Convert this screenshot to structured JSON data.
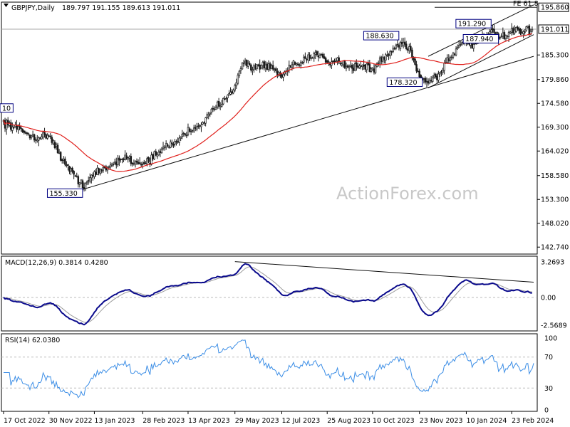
{
  "chart_data": {
    "type": "candlestick",
    "symbol": "GBPJPY,Daily",
    "ohlc_readout": "189.797 191.155 189.613 191.011",
    "watermark": "ActionForex.com",
    "colors": {
      "background": "#ffffff",
      "candles": "#1a1a1a",
      "moving_average": "#e0201c",
      "macd_line": "#0a0a8c",
      "signal_line": "#9c9c9c",
      "rsi_line": "#3c8ee6",
      "grid_dashed": "#bbbbbb",
      "label_border": "#000080"
    },
    "x_axis": {
      "ticks": [
        "17 Oct 2022",
        "30 Nov 2022",
        "13 Jan 2023",
        "28 Feb 2023",
        "13 Apr 2023",
        "29 May 2023",
        "12 Jul 2023",
        "25 Aug 2023",
        "10 Oct 2023",
        "23 Nov 2023",
        "10 Jan 2024",
        "23 Feb 2024"
      ],
      "tick_index": [
        0,
        31,
        62,
        95,
        126,
        158,
        190,
        221,
        252,
        284,
        316,
        347
      ]
    },
    "price_panel": {
      "ylim": [
        141.2,
        197.0
      ],
      "y_ticks": [
        195.86,
        191.011,
        185.3,
        179.86,
        174.58,
        169.3,
        164.02,
        158.58,
        153.3,
        148.02,
        142.74
      ],
      "y_tick_labels": [
        "195.860",
        "191.011",
        "185.300",
        "179.860",
        "174.580",
        "169.300",
        "164.020",
        "158.580",
        "153.300",
        "148.020",
        "142.740"
      ],
      "current_price": 191.011,
      "current_price_label": "191.011",
      "fe_level": 195.86,
      "fe_label": "FE 61.8",
      "annotations": [
        {
          "label": "10",
          "index": 0,
          "price": 172.6
        },
        {
          "label": "155.330",
          "index": 52,
          "price": 155.33
        },
        {
          "label": "188.630",
          "index": 268,
          "price": 188.63
        },
        {
          "label": "178.320",
          "index": 284,
          "price": 178.32
        },
        {
          "label": "191.290",
          "index": 331,
          "price": 191.29
        },
        {
          "label": "187.940",
          "index": 336,
          "price": 187.94
        }
      ],
      "trendlines": [
        {
          "name": "long-term-support",
          "from": [
            52,
            155.33
          ],
          "to": [
            362,
            185.0
          ]
        },
        {
          "name": "channel-lower",
          "from": [
            290,
            178.0
          ],
          "to": [
            362,
            189.8
          ]
        },
        {
          "name": "channel-upper",
          "from": [
            290,
            185.0
          ],
          "to": [
            362,
            196.4
          ]
        }
      ],
      "close_anchors": [
        [
          0,
          170.5
        ],
        [
          12,
          168.5
        ],
        [
          22,
          167.0
        ],
        [
          32,
          167.5
        ],
        [
          38,
          163.2
        ],
        [
          48,
          158.5
        ],
        [
          55,
          156.5
        ],
        [
          62,
          159.0
        ],
        [
          72,
          160.5
        ],
        [
          82,
          162.8
        ],
        [
          92,
          161.2
        ],
        [
          100,
          162.0
        ],
        [
          110,
          164.8
        ],
        [
          118,
          166.2
        ],
        [
          126,
          168.5
        ],
        [
          134,
          169.8
        ],
        [
          142,
          172.5
        ],
        [
          150,
          175.5
        ],
        [
          158,
          178.5
        ],
        [
          164,
          183.8
        ],
        [
          170,
          182.5
        ],
        [
          178,
          183.0
        ],
        [
          184,
          182.0
        ],
        [
          190,
          180.5
        ],
        [
          196,
          182.5
        ],
        [
          202,
          183.5
        ],
        [
          210,
          184.8
        ],
        [
          216,
          185.7
        ],
        [
          222,
          183.8
        ],
        [
          228,
          184.2
        ],
        [
          236,
          182.5
        ],
        [
          244,
          183.0
        ],
        [
          252,
          182.0
        ],
        [
          258,
          184.2
        ],
        [
          266,
          186.5
        ],
        [
          272,
          188.0
        ],
        [
          278,
          186.5
        ],
        [
          284,
          180.2
        ],
        [
          290,
          179.5
        ],
        [
          296,
          180.5
        ],
        [
          302,
          183.5
        ],
        [
          308,
          186.0
        ],
        [
          314,
          188.5
        ],
        [
          320,
          187.5
        ],
        [
          326,
          189.2
        ],
        [
          332,
          190.5
        ],
        [
          338,
          189.2
        ],
        [
          344,
          189.8
        ],
        [
          350,
          190.6
        ],
        [
          356,
          190.3
        ],
        [
          362,
          191.0
        ]
      ]
    },
    "macd_panel": {
      "label": "MACD(12,26,9) 0.3814 0.4280",
      "ylim": [
        -3.1,
        3.8
      ],
      "y_ticks": [
        3.2693,
        0.0,
        -2.5689
      ],
      "y_tick_labels": [
        "3.2693",
        "0.00",
        "-2.5689"
      ],
      "trendline": {
        "from": [
          158,
          3.3
        ],
        "to": [
          362,
          1.4
        ]
      }
    },
    "rsi_panel": {
      "label": "RSI(14) 62.0380",
      "ylim": [
        0,
        100
      ],
      "y_ticks": [
        100,
        70,
        30,
        0
      ],
      "y_tick_labels": [
        "100",
        "70",
        "30",
        "0"
      ],
      "dashed_levels": [
        70,
        30
      ]
    }
  }
}
